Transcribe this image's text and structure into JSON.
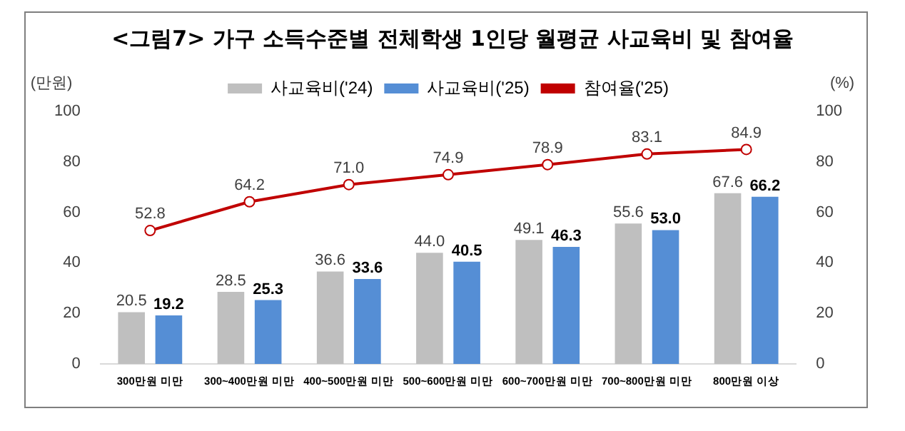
{
  "chart_data": {
    "type": "bar",
    "title": "<그림7> 가구 소득수준별 전체학생 1인당 월평균 사교육비 및 참여율",
    "ylabel": "(만원)",
    "y2label": "(%)",
    "categories": [
      "300만원 미만",
      "300~400만원 미만",
      "400~500만원 미만",
      "500~600만원 미만",
      "600~700만원 미만",
      "700~800만원 미만",
      "800만원 이상"
    ],
    "series": [
      {
        "name": "사교육비('24)",
        "color": "#bfbfbf",
        "values": [
          20.5,
          28.5,
          36.6,
          44.0,
          49.1,
          55.6,
          67.6
        ],
        "value_labels": [
          "20.5",
          "28.5",
          "36.6",
          "44.0",
          "49.1",
          "55.6",
          "67.6"
        ]
      },
      {
        "name": "사교육비('25)",
        "color": "#558ed5",
        "values": [
          19.2,
          25.3,
          33.6,
          40.5,
          46.3,
          53.0,
          66.2
        ],
        "value_labels": [
          "19.2",
          "25.3",
          "33.6",
          "40.5",
          "46.3",
          "53.0",
          "66.2"
        ]
      },
      {
        "name": "참여율('25)",
        "type": "line",
        "axis": "y2",
        "color": "#c00000",
        "marker": "circle",
        "values": [
          52.8,
          64.2,
          71.0,
          74.9,
          78.9,
          83.1,
          84.9
        ],
        "value_labels": [
          "52.8",
          "64.2",
          "71.0",
          "74.9",
          "78.9",
          "83.1",
          "84.9"
        ]
      }
    ],
    "ylim": [
      0,
      100
    ],
    "yticks": [
      0,
      20,
      40,
      60,
      80,
      100
    ],
    "y2lim": [
      0,
      100
    ],
    "y2ticks": [
      0,
      20,
      40,
      60,
      80,
      100
    ],
    "grid": false,
    "legend": "top"
  }
}
